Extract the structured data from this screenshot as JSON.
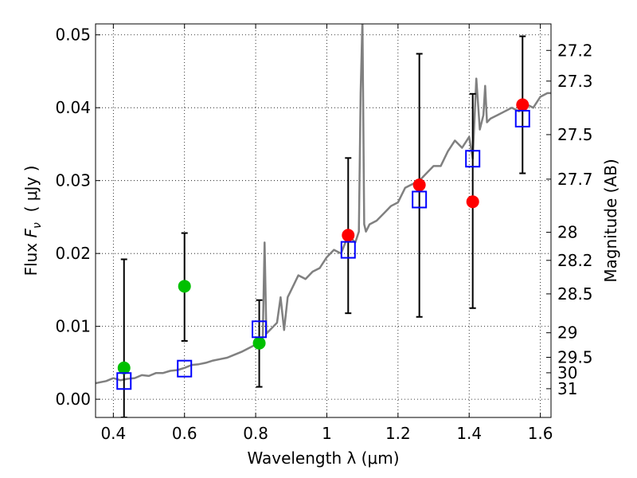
{
  "chart_data": {
    "type": "scatter",
    "xlabel": "Wavelength  λ (μm)",
    "ylabel": "Flux  F_ν  ( μJy )",
    "ylabel_parts": {
      "prefix": "Flux ",
      "symbol": "F",
      "subscript": "ν",
      "paren_open": "( ",
      "unit": "μJy",
      "paren_close": " )"
    },
    "y2label": "Magnitude (AB)",
    "xlim": [
      0.35,
      1.63
    ],
    "ylim": [
      -0.0025,
      0.0515
    ],
    "grid": true,
    "x_ticks": [
      {
        "value": 0.4,
        "label": "0.4"
      },
      {
        "value": 0.6,
        "label": "0.6"
      },
      {
        "value": 0.8,
        "label": "0.8"
      },
      {
        "value": 1.0,
        "label": "1"
      },
      {
        "value": 1.2,
        "label": "1.2"
      },
      {
        "value": 1.4,
        "label": "1.4"
      },
      {
        "value": 1.6,
        "label": "1.6"
      }
    ],
    "y_ticks": [
      {
        "value": 0.0,
        "label": "0.00"
      },
      {
        "value": 0.01,
        "label": "0.01"
      },
      {
        "value": 0.02,
        "label": "0.02"
      },
      {
        "value": 0.03,
        "label": "0.03"
      },
      {
        "value": 0.04,
        "label": "0.04"
      },
      {
        "value": 0.05,
        "label": "0.05"
      }
    ],
    "y2_ticks": [
      {
        "magnitude": 27.2,
        "label": "27.2"
      },
      {
        "magnitude": 27.3,
        "label": "27.3"
      },
      {
        "magnitude": 27.5,
        "label": "27.5"
      },
      {
        "magnitude": 27.7,
        "label": "27.7"
      },
      {
        "magnitude": 28,
        "label": "28"
      },
      {
        "magnitude": 28.2,
        "label": "28.2"
      },
      {
        "magnitude": 28.5,
        "label": "28.5"
      },
      {
        "magnitude": 29,
        "label": "29"
      },
      {
        "magnitude": 29.5,
        "label": "29.5"
      },
      {
        "magnitude": 30,
        "label": "30"
      },
      {
        "magnitude": 31,
        "label": "31"
      }
    ],
    "series": [
      {
        "kind": "line",
        "color": "#808080",
        "x": [
          0.35,
          0.38,
          0.4,
          0.42,
          0.44,
          0.46,
          0.48,
          0.5,
          0.52,
          0.54,
          0.56,
          0.58,
          0.6,
          0.62,
          0.64,
          0.66,
          0.68,
          0.7,
          0.72,
          0.74,
          0.76,
          0.78,
          0.8,
          0.81,
          0.82,
          0.825,
          0.83,
          0.84,
          0.86,
          0.87,
          0.88,
          0.89,
          0.9,
          0.92,
          0.94,
          0.96,
          0.98,
          1.0,
          1.02,
          1.04,
          1.06,
          1.08,
          1.09,
          1.095,
          1.1,
          1.105,
          1.11,
          1.12,
          1.14,
          1.16,
          1.18,
          1.2,
          1.22,
          1.24,
          1.26,
          1.28,
          1.3,
          1.32,
          1.34,
          1.36,
          1.38,
          1.4,
          1.41,
          1.42,
          1.43,
          1.44,
          1.445,
          1.45,
          1.46,
          1.48,
          1.5,
          1.52,
          1.54,
          1.56,
          1.58,
          1.6,
          1.62,
          1.63
        ],
        "y": [
          0.0022,
          0.0025,
          0.0029,
          0.0026,
          0.0028,
          0.0029,
          0.0033,
          0.0032,
          0.0036,
          0.0036,
          0.0039,
          0.004,
          0.0043,
          0.0047,
          0.0048,
          0.005,
          0.0053,
          0.0055,
          0.0057,
          0.0061,
          0.0065,
          0.007,
          0.0075,
          0.008,
          0.0085,
          0.0215,
          0.009,
          0.0095,
          0.0105,
          0.014,
          0.0095,
          0.014,
          0.015,
          0.017,
          0.0165,
          0.0175,
          0.018,
          0.0195,
          0.0205,
          0.02,
          0.0225,
          0.0215,
          0.023,
          0.042,
          0.052,
          0.024,
          0.023,
          0.024,
          0.0245,
          0.0255,
          0.0265,
          0.027,
          0.029,
          0.0295,
          0.03,
          0.031,
          0.032,
          0.032,
          0.034,
          0.0355,
          0.0345,
          0.036,
          0.033,
          0.044,
          0.037,
          0.039,
          0.043,
          0.038,
          0.0385,
          0.039,
          0.0395,
          0.04,
          0.0395,
          0.0405,
          0.04,
          0.0415,
          0.042,
          0.042
        ]
      },
      {
        "kind": "points",
        "marker": "circle",
        "color": "#00c000",
        "x": [
          0.43,
          0.6,
          0.81
        ],
        "y": [
          0.0043,
          0.0155,
          0.0077
        ],
        "yerr_low": [
          -0.0025,
          0.008,
          0.0017
        ],
        "yerr_high": [
          0.0192,
          0.0228,
          0.0136
        ]
      },
      {
        "kind": "points",
        "marker": "circle",
        "color": "#ff0000",
        "x": [
          1.06,
          1.26,
          1.41,
          1.55
        ],
        "y": [
          0.0225,
          0.0294,
          0.0271,
          0.0404
        ],
        "yerr_low": [
          0.0118,
          0.0113,
          0.0125,
          0.031
        ],
        "yerr_high": [
          0.0331,
          0.0474,
          0.0419,
          0.0498
        ]
      },
      {
        "kind": "points",
        "marker": "open-square",
        "color": "#0000ff",
        "x": [
          0.43,
          0.6,
          0.81,
          1.06,
          1.26,
          1.41,
          1.55
        ],
        "y": [
          0.0025,
          0.0042,
          0.0096,
          0.0205,
          0.0274,
          0.033,
          0.0385
        ]
      }
    ]
  }
}
